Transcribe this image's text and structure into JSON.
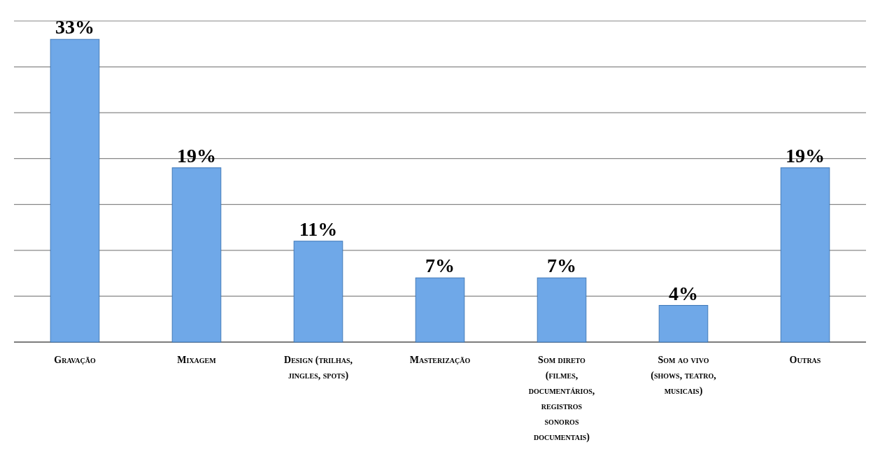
{
  "chart_data": {
    "type": "bar",
    "categories": [
      "Gravação",
      "Mixagem",
      "Design (trilhas, jingles, spots)",
      "Masterização",
      "Som direto (filmes, documentários, registros sonoros documentais)",
      "Som ao vivo (shows, teatro, musicais)",
      "Outras"
    ],
    "values": [
      33,
      19,
      11,
      7,
      7,
      4,
      19
    ],
    "value_labels": [
      "33%",
      "19%",
      "11%",
      "7%",
      "7%",
      "4%",
      "19%"
    ],
    "color": "#6fa8e8",
    "ylim": [
      0,
      35
    ],
    "yticks": [
      {
        "value": 0,
        "label": null
      },
      {
        "value": 5,
        "label": null
      },
      {
        "value": 10,
        "label": null
      },
      {
        "value": 15,
        "label": null
      },
      {
        "value": 20,
        "label": null
      },
      {
        "value": 25,
        "label": null
      },
      {
        "value": 30,
        "label": null
      },
      {
        "value": 35,
        "label": null
      }
    ],
    "grid": "y",
    "tick_labels": "x"
  }
}
